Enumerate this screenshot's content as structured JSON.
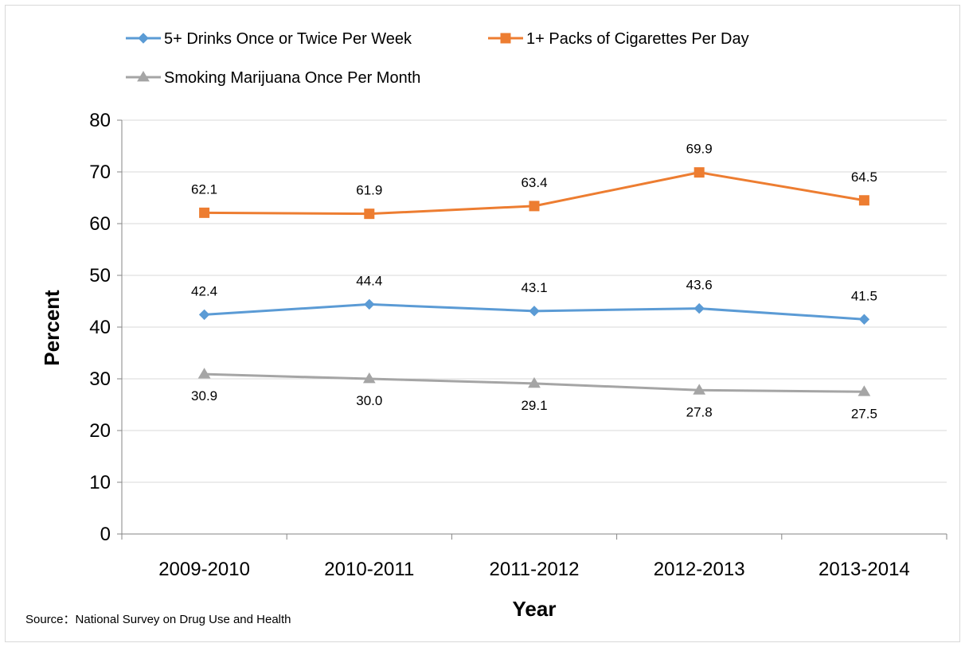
{
  "chart_data": {
    "type": "line",
    "title": "",
    "xlabel": "Year",
    "ylabel": "Percent",
    "ylim": [
      0,
      80
    ],
    "yticks": [
      0,
      10,
      20,
      30,
      40,
      50,
      60,
      70,
      80
    ],
    "grid": true,
    "legend_position": "top",
    "categories": [
      "2009-2010",
      "2010-2011",
      "2011-2012",
      "2012-2013",
      "2013-2014"
    ],
    "series": [
      {
        "name": "5+ Drinks Once or Twice Per Week",
        "color": "#5b9bd5",
        "marker": "diamond",
        "values": [
          42.4,
          44.4,
          43.1,
          43.6,
          41.5
        ],
        "labels": [
          "42.4",
          "44.4",
          "43.1",
          "43.6",
          "41.5"
        ],
        "label_position": "above"
      },
      {
        "name": "1+ Packs of Cigarettes Per Day",
        "color": "#ed7d31",
        "marker": "square",
        "values": [
          62.1,
          61.9,
          63.4,
          69.9,
          64.5
        ],
        "labels": [
          "62.1",
          "61.9",
          "63.4",
          "69.9",
          "64.5"
        ],
        "label_position": "above"
      },
      {
        "name": "Smoking Marijuana Once Per Month",
        "color": "#a5a5a5",
        "marker": "triangle",
        "values": [
          30.9,
          30.0,
          29.1,
          27.8,
          27.5
        ],
        "labels": [
          "30.9",
          "30.0",
          "29.1",
          "27.8",
          "27.5"
        ],
        "label_position": "below"
      }
    ],
    "source": "Source：National Survey on Drug Use and Health"
  }
}
